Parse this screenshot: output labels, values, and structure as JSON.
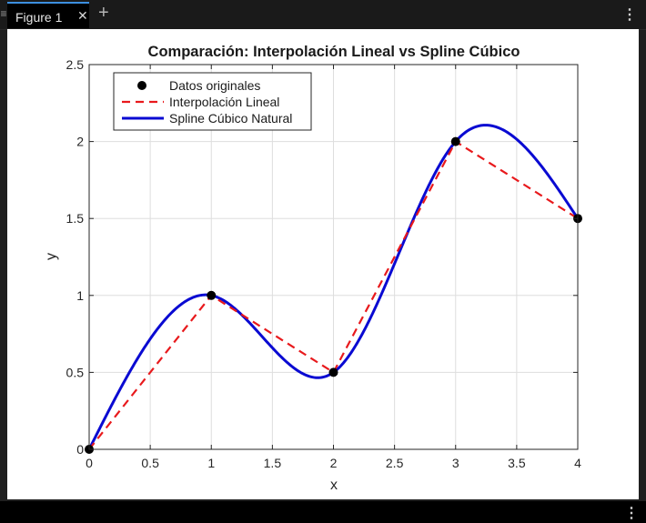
{
  "window": {
    "tab_label": "Figure 1",
    "close_glyph": "✕",
    "add_glyph": "+",
    "menu_glyph": "⋮",
    "grip_glyph": "≡"
  },
  "chart_data": {
    "type": "line",
    "title": "Comparación: Interpolación Lineal vs Spline Cúbico",
    "xlabel": "x",
    "ylabel": "y",
    "xlim": [
      0,
      4
    ],
    "ylim": [
      0,
      2.5
    ],
    "xticks": [
      0,
      0.5,
      1,
      1.5,
      2,
      2.5,
      3,
      3.5,
      4
    ],
    "yticks": [
      0,
      0.5,
      1,
      1.5,
      2,
      2.5
    ],
    "grid": true,
    "legend_position": "top-left",
    "series": [
      {
        "name": "Datos originales",
        "kind": "markers",
        "color": "#000000",
        "x": [
          0,
          1,
          2,
          3,
          4
        ],
        "y": [
          0,
          1,
          0.5,
          2,
          1.5
        ]
      },
      {
        "name": "Interpolación Lineal",
        "kind": "dashed-line",
        "color": "#e8191c",
        "x": [
          0,
          1,
          2,
          3,
          4
        ],
        "y": [
          0,
          1,
          0.5,
          2,
          1.5
        ]
      },
      {
        "name": "Spline Cúbico Natural",
        "kind": "solid-line",
        "color": "#0a0ad2",
        "x": [
          0,
          1,
          2,
          3,
          4
        ],
        "y": [
          0,
          1,
          0.5,
          2,
          1.5
        ]
      }
    ]
  }
}
